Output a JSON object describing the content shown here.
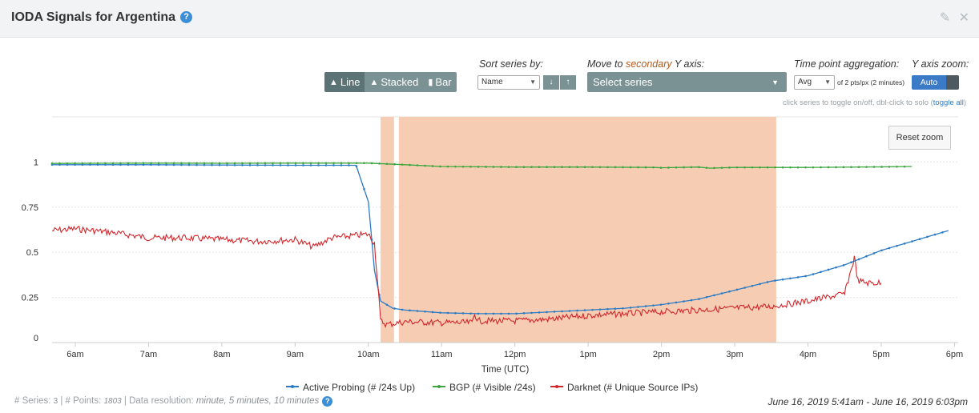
{
  "header": {
    "title": "IODA Signals for Argentina",
    "help": "?",
    "edit_icon": "✎",
    "close_icon": "✕"
  },
  "controls": {
    "chart_types": [
      {
        "icon": "▲",
        "label": "Line",
        "active": true
      },
      {
        "icon": "▲",
        "label": "Stacked",
        "active": false
      },
      {
        "icon": "▮",
        "label": "Bar",
        "active": false
      }
    ],
    "sort_label": "Sort series by:",
    "sort_value": "Name",
    "sort_down": "↓",
    "sort_up": "↑",
    "secondary_label_prefix": "Move to ",
    "secondary_label_highlight": "secondary",
    "secondary_label_suffix": " Y axis:",
    "secondary_placeholder": "Select series",
    "aggregation_label": "Time point aggregation:",
    "aggregation_value": "Avg",
    "aggregation_info": "of 2 pts/px (2 minutes)",
    "yzoom_label": "Y axis zoom:",
    "yzoom_value": "Auto",
    "hint_text": "click series to toggle on/off, dbl-click to solo (",
    "hint_link": "toggle all",
    "hint_close": ")",
    "reset_zoom": "Reset zoom"
  },
  "footer": {
    "series_label": "# Series: ",
    "series_count": "3",
    "points_label": " | # Points: ",
    "points_count": "1803",
    "resolution_label": " | Data resolution: ",
    "resolution_value": "minute, 5 minutes, 10 minutes",
    "date_range": "June 16, 2019 5:41am - June 16, 2019 6:03pm"
  },
  "colors": {
    "active_probing": "#2b7bc4",
    "bgp": "#3da53d",
    "darknet": "#d3262b",
    "outage": "#f5c8ab"
  },
  "chart_data": {
    "type": "line",
    "xlabel": "Time (UTC)",
    "ylabel": "",
    "x_range": [
      "05:41",
      "06:03pm"
    ],
    "ylim": [
      0,
      1.25
    ],
    "x_ticks": [
      "6am",
      "7am",
      "8am",
      "9am",
      "10am",
      "11am",
      "12pm",
      "1pm",
      "2pm",
      "3pm",
      "4pm",
      "5pm",
      "6pm"
    ],
    "y_ticks": [
      0,
      0.25,
      0.5,
      0.75,
      1
    ],
    "grid": true,
    "legend": "bottom",
    "outage_periods": [
      [
        "10:10",
        "10:21"
      ],
      [
        "10:25",
        "15:34"
      ]
    ],
    "series": [
      {
        "name": "Active Probing (# /24s Up)",
        "points": [
          [
            "05:41",
            0.985
          ],
          [
            "06:00",
            0.985
          ],
          [
            "07:00",
            0.985
          ],
          [
            "08:00",
            0.983
          ],
          [
            "09:00",
            0.982
          ],
          [
            "09:50",
            0.982
          ],
          [
            "10:00",
            0.78
          ],
          [
            "10:05",
            0.4
          ],
          [
            "10:10",
            0.23
          ],
          [
            "10:20",
            0.19
          ],
          [
            "10:30",
            0.18
          ],
          [
            "11:00",
            0.165
          ],
          [
            "11:30",
            0.16
          ],
          [
            "12:00",
            0.16
          ],
          [
            "12:30",
            0.17
          ],
          [
            "13:00",
            0.18
          ],
          [
            "13:30",
            0.19
          ],
          [
            "14:00",
            0.21
          ],
          [
            "14:30",
            0.24
          ],
          [
            "15:00",
            0.29
          ],
          [
            "15:30",
            0.34
          ],
          [
            "16:00",
            0.37
          ],
          [
            "16:30",
            0.43
          ],
          [
            "17:00",
            0.51
          ],
          [
            "17:30",
            0.57
          ],
          [
            "17:50",
            0.61
          ],
          [
            "17:55",
            0.62
          ]
        ]
      },
      {
        "name": "BGP (# Visible /24s)",
        "points": [
          [
            "05:41",
            0.992
          ],
          [
            "07:00",
            0.994
          ],
          [
            "08:00",
            0.993
          ],
          [
            "09:00",
            0.994
          ],
          [
            "10:00",
            0.994
          ],
          [
            "10:30",
            0.985
          ],
          [
            "11:00",
            0.975
          ],
          [
            "12:00",
            0.972
          ],
          [
            "13:00",
            0.972
          ],
          [
            "13:55",
            0.97
          ],
          [
            "14:00",
            0.968
          ],
          [
            "14:30",
            0.972
          ],
          [
            "14:40",
            0.966
          ],
          [
            "15:00",
            0.97
          ],
          [
            "16:00",
            0.97
          ],
          [
            "17:00",
            0.973
          ],
          [
            "17:25",
            0.975
          ]
        ]
      },
      {
        "name": "Darknet (# Unique Source IPs)",
        "points": [
          [
            "05:41",
            0.62
          ],
          [
            "06:00",
            0.63
          ],
          [
            "06:30",
            0.61
          ],
          [
            "07:00",
            0.58
          ],
          [
            "07:30",
            0.58
          ],
          [
            "08:00",
            0.57
          ],
          [
            "08:30",
            0.56
          ],
          [
            "09:00",
            0.57
          ],
          [
            "09:15",
            0.53
          ],
          [
            "09:30",
            0.58
          ],
          [
            "10:00",
            0.6
          ],
          [
            "10:05",
            0.55
          ],
          [
            "10:08",
            0.3
          ],
          [
            "10:10",
            0.12
          ],
          [
            "10:15",
            0.1
          ],
          [
            "10:30",
            0.115
          ],
          [
            "11:00",
            0.11
          ],
          [
            "11:25",
            0.11
          ],
          [
            "11:27",
            0.16
          ],
          [
            "11:30",
            0.12
          ],
          [
            "12:00",
            0.12
          ],
          [
            "12:30",
            0.13
          ],
          [
            "13:00",
            0.15
          ],
          [
            "13:30",
            0.16
          ],
          [
            "14:00",
            0.17
          ],
          [
            "14:30",
            0.18
          ],
          [
            "15:00",
            0.19
          ],
          [
            "15:30",
            0.2
          ],
          [
            "16:00",
            0.23
          ],
          [
            "16:30",
            0.27
          ],
          [
            "16:38",
            0.47
          ],
          [
            "16:41",
            0.34
          ],
          [
            "16:50",
            0.33
          ],
          [
            "17:00",
            0.33
          ]
        ]
      }
    ]
  }
}
